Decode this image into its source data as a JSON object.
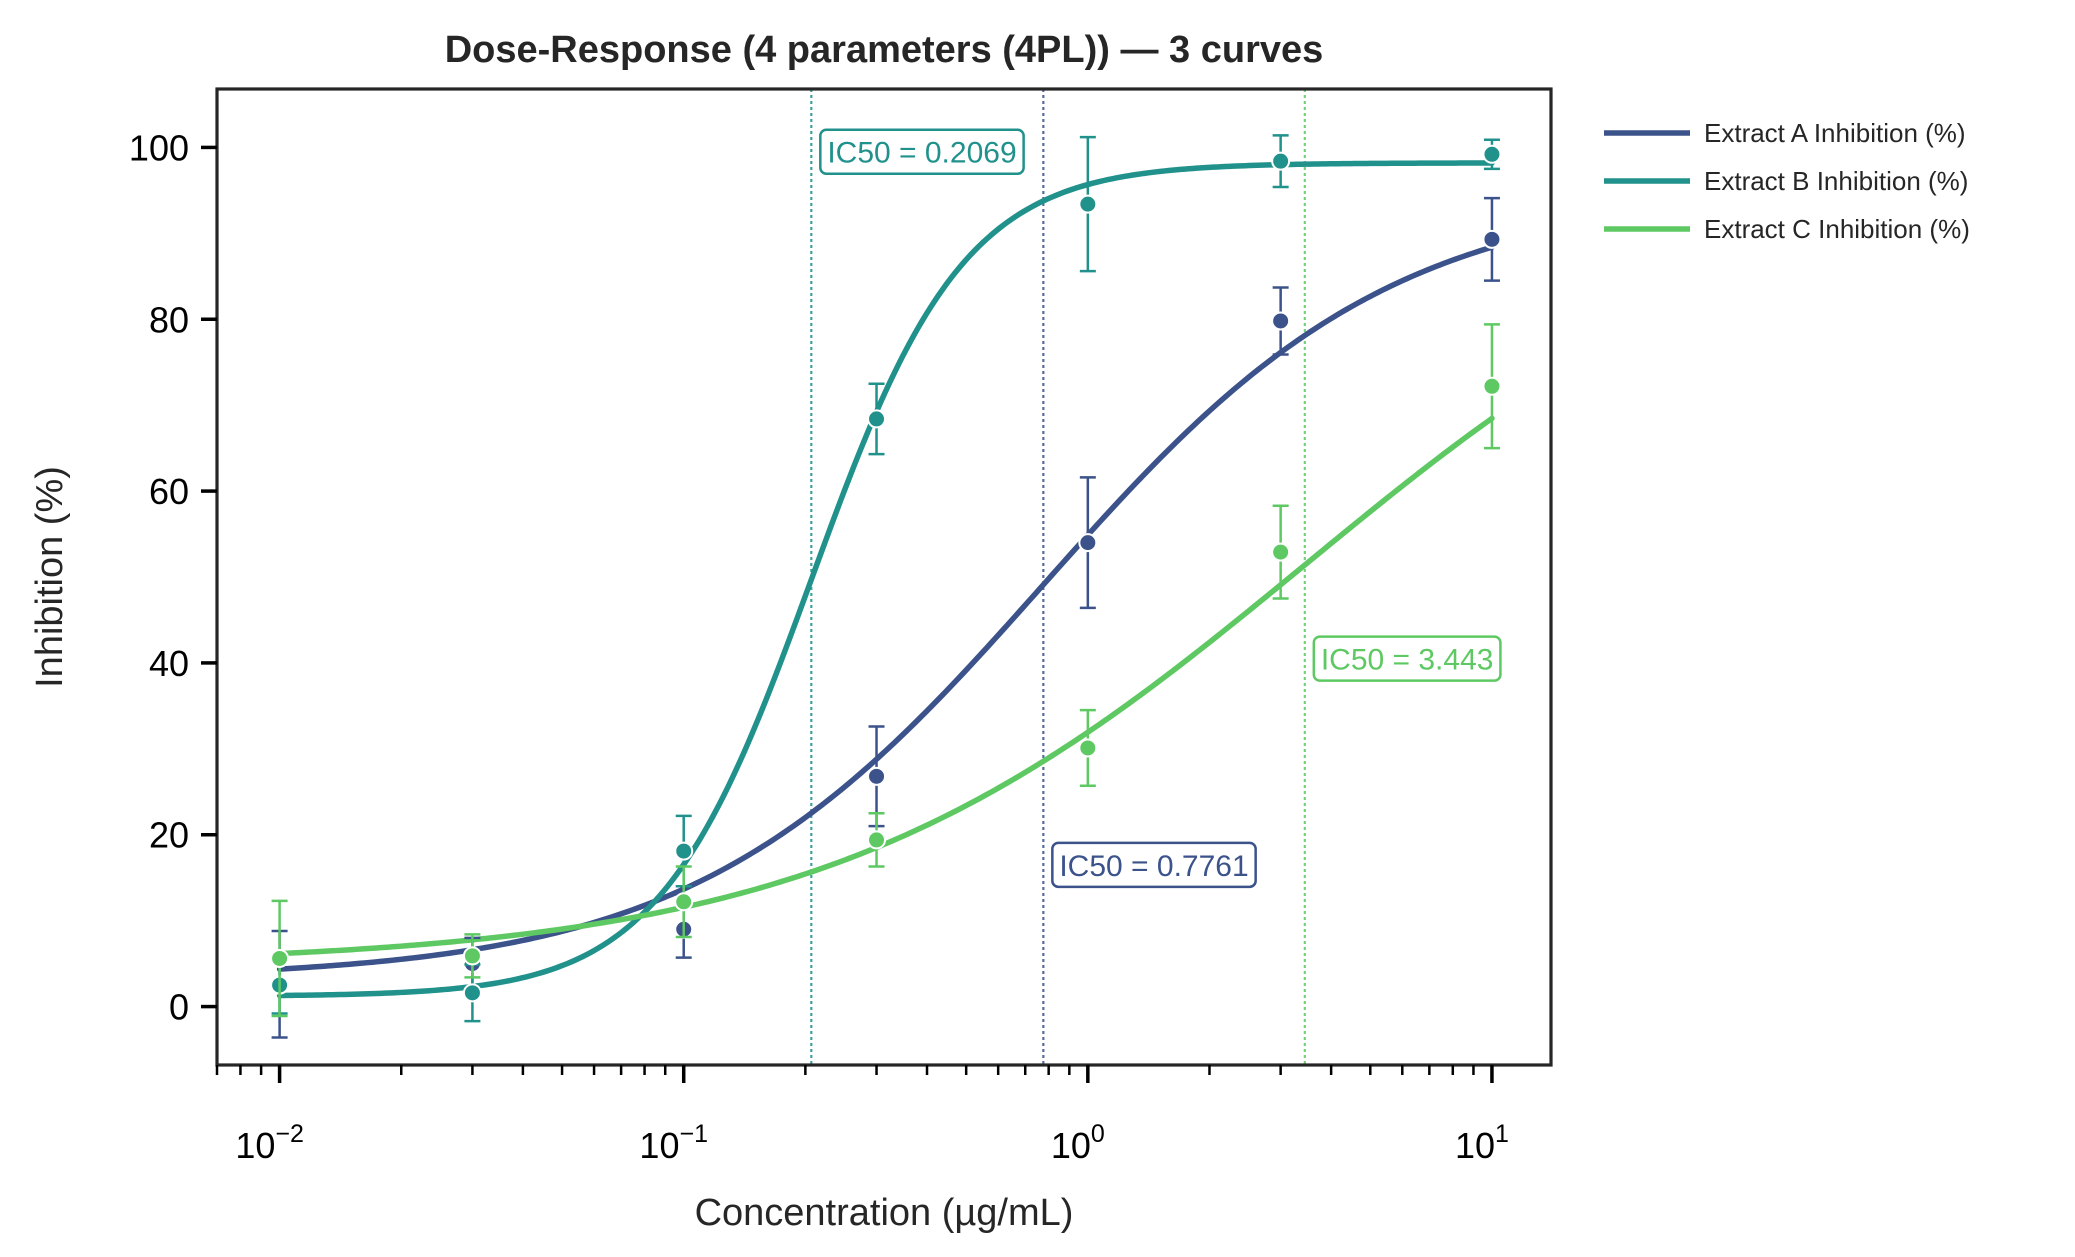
{
  "chart_data": {
    "type": "line",
    "title": "Dose-Response (4 parameters (4PL)) — 3 curves",
    "xlabel": "Concentration (µg/mL)",
    "ylabel": "Inhibition (%)",
    "xscale": "log",
    "xlim": [
      0.007,
      14
    ],
    "ylim": [
      -6.8,
      106.8
    ],
    "xticks": [
      {
        "value": 0.01,
        "base": "10",
        "exp": "−2"
      },
      {
        "value": 0.1,
        "base": "10",
        "exp": "−1"
      },
      {
        "value": 1,
        "base": "10",
        "exp": "0"
      },
      {
        "value": 10,
        "base": "10",
        "exp": "1"
      }
    ],
    "yticks": [
      {
        "value": 0,
        "label": "0"
      },
      {
        "value": 20,
        "label": "20"
      },
      {
        "value": 40,
        "label": "40"
      },
      {
        "value": 60,
        "label": "60"
      },
      {
        "value": 80,
        "label": "80"
      },
      {
        "value": 100,
        "label": "100"
      }
    ],
    "grid": false,
    "legend_position": "outside-right-top",
    "x": [
      0.01,
      0.03,
      0.1,
      0.3,
      1,
      3,
      10
    ],
    "series": [
      {
        "name": "Extract A Inhibition (%)",
        "color": "#3b528b",
        "values": [
          2.6,
          5.0,
          9.0,
          26.8,
          54.0,
          79.8,
          89.3
        ],
        "errors": [
          6.2,
          3.0,
          3.3,
          5.8,
          7.6,
          3.9,
          4.8
        ],
        "fit": {
          "bottom": 3.2,
          "top": 95.0,
          "ic50": 0.7761,
          "hill": 1.0
        },
        "ic50_label": "IC50 = 0.7761",
        "ic50": 0.7761,
        "ic50_label_y": 16.5
      },
      {
        "name": "Extract B Inhibition (%)",
        "color": "#21918c",
        "values": [
          2.5,
          1.6,
          18.1,
          68.4,
          93.4,
          98.4,
          99.2
        ],
        "errors": [
          3.3,
          3.3,
          4.1,
          4.1,
          7.8,
          3.0,
          1.7
        ],
        "fit": {
          "bottom": 1.2,
          "top": 98.2,
          "ic50": 0.2069,
          "hill": 2.3
        },
        "ic50_label": "IC50 = 0.2069",
        "ic50": 0.2069,
        "ic50_label_y": 99.5
      },
      {
        "name": "Extract C Inhibition (%)",
        "color": "#5ec962",
        "values": [
          5.6,
          5.9,
          12.2,
          19.4,
          30.1,
          52.9,
          72.2
        ],
        "errors": [
          6.7,
          2.5,
          4.1,
          3.1,
          4.4,
          5.4,
          7.2
        ],
        "fit": {
          "bottom": 4.8,
          "top": 98.0,
          "ic50": 3.443,
          "hill": 0.72
        },
        "ic50_label": "IC50 = 3.443",
        "ic50": 3.443,
        "ic50_label_y": 40.5
      }
    ]
  }
}
